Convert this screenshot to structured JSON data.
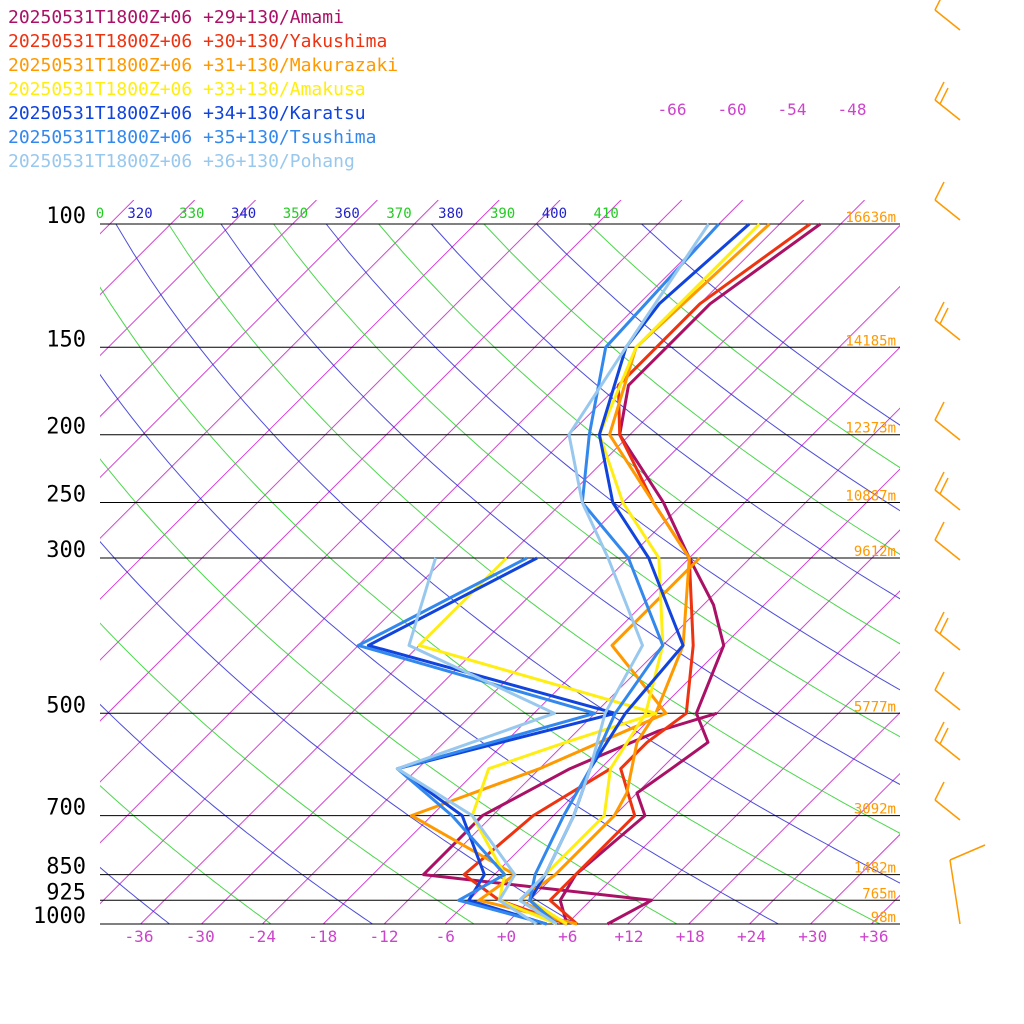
{
  "chart_data": {
    "type": "line",
    "subtype": "skew-T log-P sounding",
    "title": "",
    "xlabel": "",
    "ylabel": "",
    "xlim": [
      -40,
      40
    ],
    "ylim": [
      1000,
      100
    ],
    "y_scale": "log",
    "x_ticks": [
      "-36",
      "-30",
      "-24",
      "-18",
      "-12",
      "-6",
      "+0",
      "+6",
      "+12",
      "+18",
      "+24",
      "+30",
      "+36"
    ],
    "isobars": [
      {
        "p": 100,
        "label": "100",
        "height_label": "16636m"
      },
      {
        "p": 150,
        "label": "150",
        "height_label": "14185m"
      },
      {
        "p": 200,
        "label": "200",
        "height_label": "12373m"
      },
      {
        "p": 250,
        "label": "250",
        "height_label": "10887m"
      },
      {
        "p": 300,
        "label": "300",
        "height_label": "9612m"
      },
      {
        "p": 500,
        "label": "500",
        "height_label": "5777m"
      },
      {
        "p": 700,
        "label": "700",
        "height_label": "3092m"
      },
      {
        "p": 850,
        "label": "850",
        "height_label": "1482m"
      },
      {
        "p": 925,
        "label": "925",
        "height_label": "765m"
      },
      {
        "p": 1000,
        "label": "1000",
        "height_label": "98m"
      }
    ],
    "theta_labels": [
      "0",
      "320",
      "330",
      "340",
      "350",
      "360",
      "370",
      "380",
      "390",
      "400",
      "410"
    ],
    "top_temperature_labels": [
      "-66",
      "-60",
      "-54",
      "-48"
    ],
    "colors": {
      "isotherm": "#cc22cc",
      "theta_green": "#22cc22",
      "theta_blue": "#2222cc",
      "isobar": "#000000",
      "tick_label": "#cc44cc",
      "height_label": "#ff9900",
      "wind": "#ff9900"
    },
    "series": [
      {
        "name": "20250531T1800Z+06 +29+130/Amami",
        "color": "#aa1166",
        "temperature": [
          [
            100,
            -38
          ],
          [
            130,
            -41
          ],
          [
            150,
            -41
          ],
          [
            170,
            -41
          ],
          [
            200,
            -37
          ],
          [
            250,
            -26
          ],
          [
            300,
            -18
          ],
          [
            350,
            -11
          ],
          [
            400,
            -6
          ],
          [
            500,
            -2
          ],
          [
            550,
            2
          ],
          [
            600,
            1
          ],
          [
            650,
            0
          ],
          [
            700,
            3
          ],
          [
            850,
            2
          ],
          [
            925,
            3
          ],
          [
            1000,
            6
          ]
        ],
        "dewpoint": [
          [
            500,
            0
          ],
          [
            530,
            -4
          ],
          [
            600,
            -9
          ],
          [
            700,
            -13
          ],
          [
            850,
            -13
          ],
          [
            925,
            12
          ],
          [
            1000,
            10
          ]
        ]
      },
      {
        "name": "20250531T1800Z+06 +30+130/Yakushima",
        "color": "#ee3311",
        "temperature": [
          [
            100,
            -39
          ],
          [
            130,
            -42
          ],
          [
            150,
            -42
          ],
          [
            170,
            -42
          ],
          [
            200,
            -37
          ],
          [
            250,
            -27
          ],
          [
            300,
            -18
          ],
          [
            400,
            -9
          ],
          [
            500,
            -3
          ],
          [
            550,
            -4
          ],
          [
            600,
            -4
          ],
          [
            700,
            2
          ],
          [
            850,
            2
          ],
          [
            925,
            2
          ],
          [
            1000,
            7
          ]
        ],
        "dewpoint": [
          [
            600,
            -5
          ],
          [
            700,
            -8
          ],
          [
            850,
            -9
          ],
          [
            925,
            -3
          ],
          [
            1000,
            6
          ]
        ]
      },
      {
        "name": "20250531T1800Z+06 +31+130/Makurazaki",
        "color": "#ff9900",
        "temperature": [
          [
            100,
            -43
          ],
          [
            150,
            -44
          ],
          [
            200,
            -38
          ],
          [
            250,
            -27
          ],
          [
            300,
            -18
          ],
          [
            400,
            -10
          ],
          [
            500,
            -6
          ],
          [
            550,
            -5
          ],
          [
            650,
            -1
          ],
          [
            700,
            0
          ],
          [
            850,
            0
          ],
          [
            925,
            -1
          ],
          [
            1000,
            6
          ]
        ],
        "dewpoint": [
          [
            300,
            -17
          ],
          [
            400,
            -17
          ],
          [
            500,
            -5
          ],
          [
            600,
            -12
          ],
          [
            700,
            -20
          ],
          [
            850,
            -4
          ],
          [
            925,
            -5
          ],
          [
            1000,
            7
          ]
        ]
      },
      {
        "name": "20250531T1800Z+06 +33+130/Amakusa",
        "color": "#ffee11",
        "temperature": [
          [
            100,
            -44
          ],
          [
            150,
            -44
          ],
          [
            200,
            -39
          ],
          [
            250,
            -30
          ],
          [
            300,
            -21
          ],
          [
            400,
            -12
          ],
          [
            500,
            -7
          ],
          [
            600,
            -5
          ],
          [
            700,
            -1
          ],
          [
            850,
            -1
          ],
          [
            925,
            0
          ],
          [
            1000,
            6
          ]
        ],
        "dewpoint": [
          [
            300,
            -36
          ],
          [
            400,
            -36
          ],
          [
            500,
            -6
          ],
          [
            550,
            -12
          ],
          [
            600,
            -17
          ],
          [
            700,
            -14
          ],
          [
            850,
            -5
          ],
          [
            925,
            -3
          ],
          [
            1000,
            5
          ]
        ]
      },
      {
        "name": "20250531T1800Z+06 +34+130/Karatsu",
        "color": "#1144dd",
        "temperature": [
          [
            100,
            -45
          ],
          [
            130,
            -46
          ],
          [
            150,
            -45
          ],
          [
            200,
            -39
          ],
          [
            250,
            -31
          ],
          [
            300,
            -22
          ],
          [
            400,
            -10
          ],
          [
            500,
            -9
          ],
          [
            600,
            -7
          ],
          [
            700,
            -4
          ],
          [
            850,
            -1
          ],
          [
            925,
            0
          ],
          [
            1000,
            5
          ]
        ],
        "dewpoint": [
          [
            300,
            -33
          ],
          [
            400,
            -41
          ],
          [
            500,
            -10
          ],
          [
            600,
            -26
          ],
          [
            700,
            -15
          ],
          [
            850,
            -7
          ],
          [
            925,
            -6
          ],
          [
            1000,
            4
          ]
        ]
      },
      {
        "name": "20250531T1800Z+06 +35+130/Tsushima",
        "color": "#3388ee",
        "temperature": [
          [
            100,
            -48
          ],
          [
            150,
            -47
          ],
          [
            200,
            -40
          ],
          [
            250,
            -34
          ],
          [
            300,
            -24
          ],
          [
            400,
            -12
          ],
          [
            500,
            -10
          ],
          [
            600,
            -7
          ],
          [
            700,
            -5
          ],
          [
            850,
            -2
          ],
          [
            925,
            0
          ],
          [
            1000,
            5
          ]
        ],
        "dewpoint": [
          [
            300,
            -34
          ],
          [
            400,
            -42
          ],
          [
            500,
            -12
          ],
          [
            600,
            -26
          ],
          [
            700,
            -16
          ],
          [
            850,
            -5
          ],
          [
            925,
            -7
          ],
          [
            1000,
            4
          ]
        ]
      },
      {
        "name": "20250531T1800Z+06 +36+130/Pohang",
        "color": "#99c8ee",
        "temperature": [
          [
            100,
            -49
          ],
          [
            150,
            -45
          ],
          [
            200,
            -42
          ],
          [
            250,
            -34
          ],
          [
            300,
            -26
          ],
          [
            400,
            -14
          ],
          [
            500,
            -11
          ],
          [
            600,
            -7
          ],
          [
            700,
            -4
          ],
          [
            850,
            -1
          ],
          [
            925,
            -1
          ],
          [
            1000,
            5
          ]
        ],
        "dewpoint": [
          [
            300,
            -43
          ],
          [
            400,
            -37
          ],
          [
            500,
            -16
          ],
          [
            600,
            -26
          ],
          [
            700,
            -14
          ],
          [
            850,
            -4
          ],
          [
            925,
            -3
          ],
          [
            1000,
            3
          ]
        ]
      }
    ]
  }
}
